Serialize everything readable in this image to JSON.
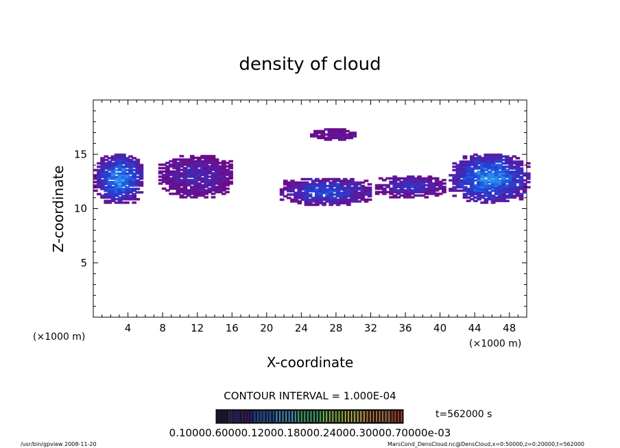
{
  "chart_data": {
    "type": "heatmap",
    "title": "density of cloud",
    "xlabel": "X-coordinate",
    "ylabel": "Z-coordinate",
    "x_unit": "(×1000 m)",
    "xlim": [
      0,
      50
    ],
    "ylim": [
      0,
      20
    ],
    "x_ticks": [
      "4",
      "8",
      "12",
      "16",
      "20",
      "24",
      "28",
      "32",
      "36",
      "40",
      "44",
      "48"
    ],
    "y_ticks": [
      "5",
      "10",
      "15"
    ],
    "contour_interval_label": "CONTOUR INTERVAL = 1.000E-04",
    "time_label": "t=562000 s",
    "colorbar_labels": [
      "0.10000",
      "0.60000e-03",
      "0.12000e-03",
      "0.18000e-03",
      "0.24000e-03",
      "0.30000e-03",
      "0.70000e-03"
    ],
    "colorbar_label_text": "0.10000.60000.12000.18000.24000.30000.70000e-03",
    "footer_left": "/usr/bin/gpview   2008-11-20",
    "footer_right": "MarsCond_DensCloud.nc@DensCloud,x=0:50000,z=0:20000,t=562000",
    "cloud_regions": [
      {
        "x": [
          0,
          5.5
        ],
        "z": [
          10.5,
          15
        ],
        "level": 0.9
      },
      {
        "x": [
          7.5,
          16
        ],
        "z": [
          11,
          14.8
        ],
        "level": 0.35
      },
      {
        "x": [
          21.5,
          32
        ],
        "z": [
          10.3,
          12.8
        ],
        "level": 0.6
      },
      {
        "x": [
          25,
          30
        ],
        "z": [
          16.3,
          17.3
        ],
        "level": 0.2
      },
      {
        "x": [
          32.5,
          40.5
        ],
        "z": [
          11,
          13
        ],
        "level": 0.45
      },
      {
        "x": [
          41,
          50
        ],
        "z": [
          10.5,
          15
        ],
        "level": 0.9
      }
    ]
  }
}
